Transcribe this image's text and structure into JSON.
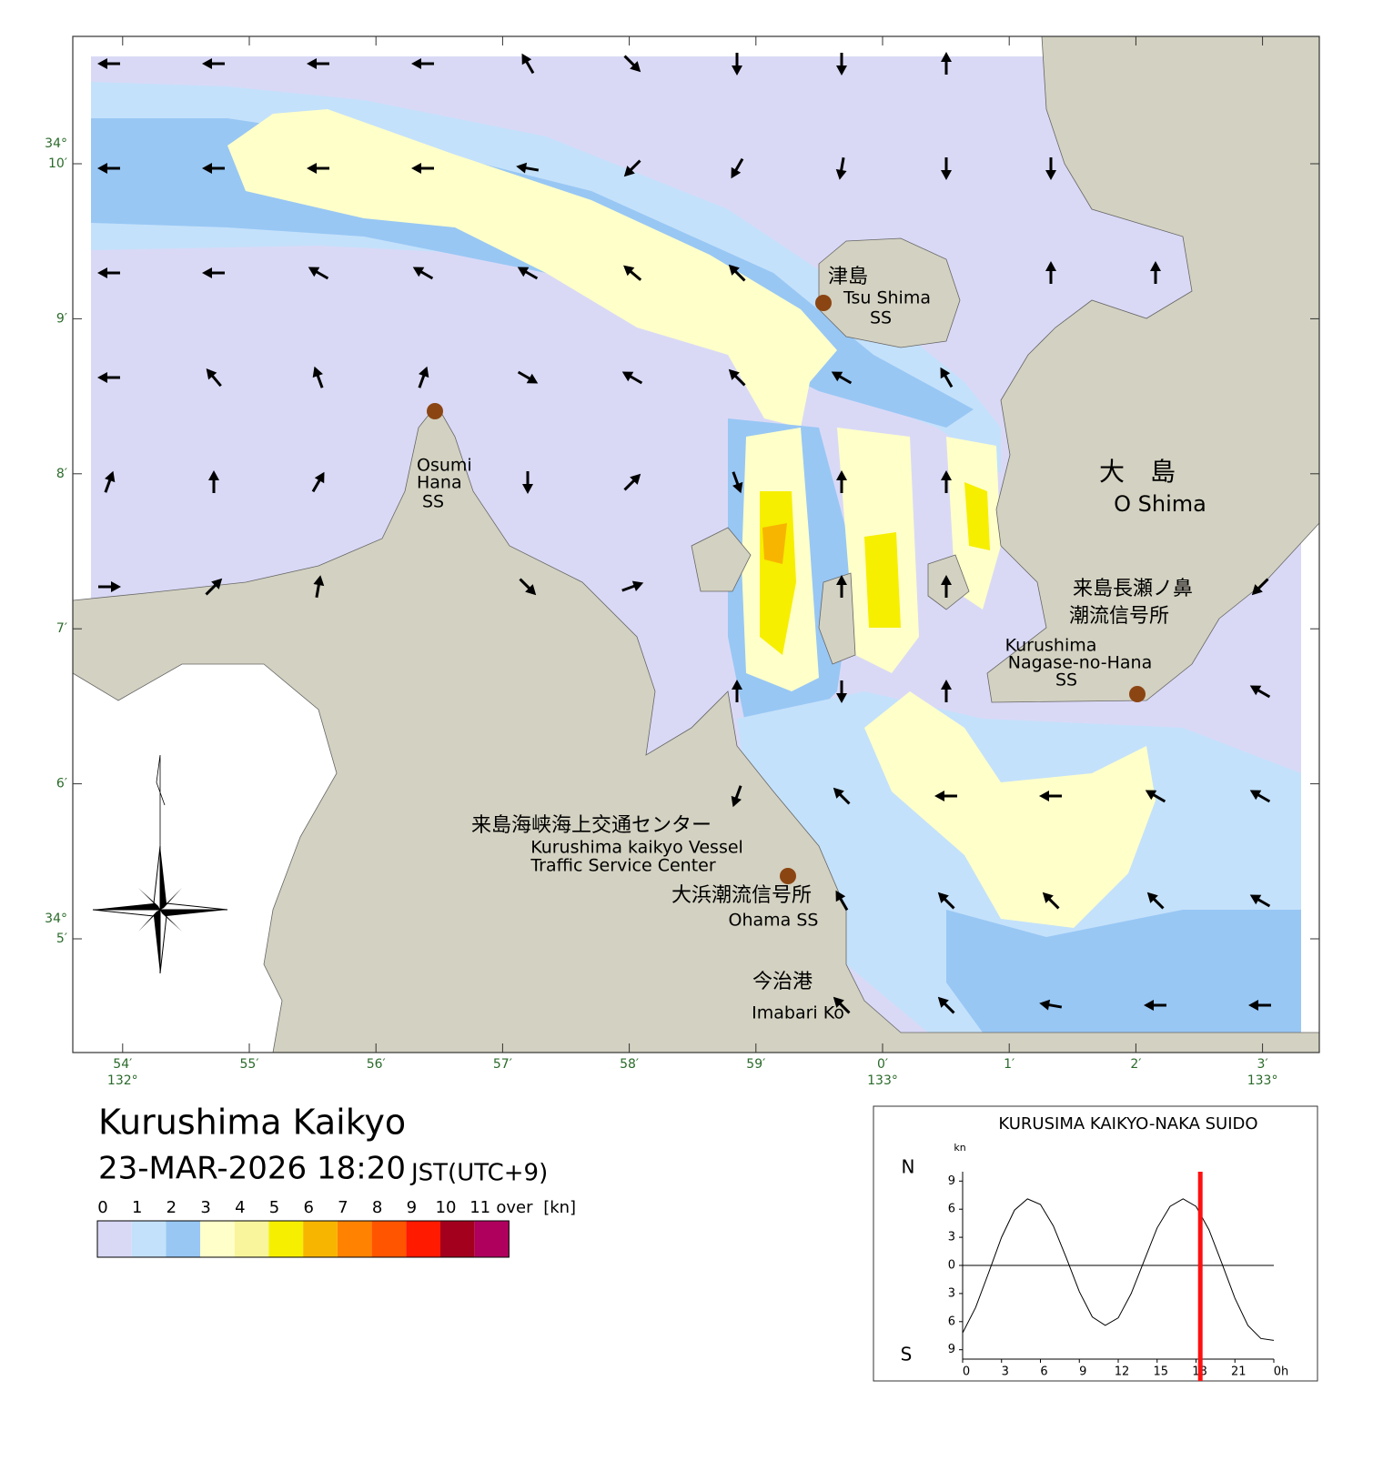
{
  "map": {
    "lat_ticks": [
      {
        "value": 10,
        "label": "10′"
      },
      {
        "value": 9,
        "label": "9′"
      },
      {
        "value": 8,
        "label": "8′"
      },
      {
        "value": 7,
        "label": "7′"
      },
      {
        "value": 6,
        "label": "6′"
      },
      {
        "value": 5,
        "label": "5′"
      }
    ],
    "lat_degree_labels": [
      {
        "value": 10,
        "label": "34°"
      },
      {
        "value": 5,
        "label": "34°"
      }
    ],
    "lon_ticks": [
      {
        "value": -6,
        "label": "54′"
      },
      {
        "value": -5,
        "label": "55′"
      },
      {
        "value": -4,
        "label": "56′"
      },
      {
        "value": -3,
        "label": "57′"
      },
      {
        "value": -2,
        "label": "58′"
      },
      {
        "value": -1,
        "label": "59′"
      },
      {
        "value": 0,
        "label": "0′"
      },
      {
        "value": 1,
        "label": "1′"
      },
      {
        "value": 2,
        "label": "2′"
      },
      {
        "value": 3,
        "label": "3′"
      }
    ],
    "lon_degree_labels": [
      {
        "value": -6,
        "label": "132°"
      },
      {
        "value": 0,
        "label": "133°"
      },
      {
        "value": 3,
        "label": "133°"
      }
    ],
    "current_directions": [
      [
        270,
        270,
        270,
        270,
        330,
        135,
        180,
        180,
        0,
        null,
        null,
        null
      ],
      [
        270,
        270,
        270,
        270,
        280,
        225,
        210,
        190,
        180,
        180,
        null,
        null
      ],
      [
        270,
        270,
        300,
        300,
        300,
        310,
        315,
        null,
        null,
        0,
        0,
        null
      ],
      [
        270,
        320,
        340,
        20,
        120,
        300,
        315,
        300,
        330,
        null,
        null,
        null
      ],
      [
        20,
        0,
        30,
        null,
        180,
        45,
        160,
        0,
        0,
        null,
        null,
        null
      ],
      [
        90,
        45,
        10,
        null,
        135,
        70,
        null,
        0,
        0,
        null,
        null,
        225
      ],
      [
        null,
        null,
        null,
        null,
        null,
        null,
        0,
        180,
        0,
        null,
        null,
        300
      ],
      [
        null,
        null,
        null,
        null,
        null,
        null,
        200,
        315,
        270,
        270,
        300,
        300
      ],
      [
        null,
        null,
        null,
        null,
        null,
        null,
        null,
        330,
        315,
        315,
        315,
        300
      ],
      [
        null,
        null,
        null,
        null,
        null,
        null,
        null,
        315,
        315,
        280,
        270,
        270
      ]
    ],
    "places": {
      "tsu_ja": "津島",
      "tsu_en": "Tsu Shima",
      "tsu_ss": "SS",
      "osumi_1": "Osumi",
      "osumi_2": "Hana",
      "osumi_ss": "SS",
      "oshima_ja": "大　島",
      "oshima_en": "O Shima",
      "nagase_ja1": "来島長瀬ノ鼻",
      "nagase_ja2": "潮流信号所",
      "nagase_en1": "Kurushima",
      "nagase_en2": "Nagase-no-Hana",
      "nagase_ss": "SS",
      "center_ja": "来島海峡海上交通センター",
      "center_en1": "Kurushima kaikyo Vessel",
      "center_en2": "Traffic Service Center",
      "ohama_ja": "大浜潮流信号所",
      "ohama_en": "Ohama SS",
      "imabari_ja": "今治港",
      "imabari_en": "Imabari Ko"
    }
  },
  "header": {
    "title": "Kurushima Kaikyo",
    "datetime": "23-MAR-2026 18:20",
    "timezone": "JST(UTC+9)"
  },
  "legend": {
    "labels": [
      "0",
      "1",
      "2",
      "3",
      "4",
      "5",
      "6",
      "7",
      "8",
      "9",
      "10",
      "11",
      "over"
    ],
    "unit": "[kn]",
    "colors": [
      "#d9d9f6",
      "#c4e1fb",
      "#98c7f4",
      "#ffffca",
      "#f8f59c",
      "#f6ef00",
      "#f8b500",
      "#ff8200",
      "#ff5500",
      "#ff1a00",
      "#a3001e",
      "#b0005e"
    ]
  },
  "chart_data": {
    "type": "line",
    "title": "KURUSIMA KAIKYO-NAKA SUIDO",
    "y_unit": "kn",
    "north_label": "N",
    "south_label": "S",
    "x": [
      0,
      1,
      2,
      3,
      4,
      5,
      6,
      7,
      8,
      9,
      10,
      11,
      12,
      13,
      14,
      15,
      16,
      17,
      18,
      19,
      20,
      21,
      22,
      23,
      24
    ],
    "series": [
      {
        "color": "#000000",
        "values": [
          -7.2,
          -4.5,
          -0.8,
          3.0,
          5.9,
          7.1,
          6.5,
          4.2,
          0.8,
          -2.8,
          -5.5,
          -6.4,
          -5.6,
          -3.0,
          0.5,
          4.0,
          6.3,
          7.1,
          6.3,
          3.8,
          0.2,
          -3.5,
          -6.4,
          -7.8,
          -8.0
        ]
      }
    ],
    "xlim": [
      0,
      24
    ],
    "ylim": [
      -10,
      10
    ],
    "xticks": [
      0,
      3,
      6,
      9,
      12,
      15,
      18,
      21,
      {
        "value": 24,
        "label": "0h"
      }
    ],
    "yticks": [
      9,
      6,
      3,
      0,
      {
        "value": -3,
        "label": "3"
      },
      {
        "value": -6,
        "label": "6"
      },
      {
        "value": -9,
        "label": "9"
      }
    ],
    "current_time": 18.33,
    "current_time_color": "#ff1010"
  }
}
